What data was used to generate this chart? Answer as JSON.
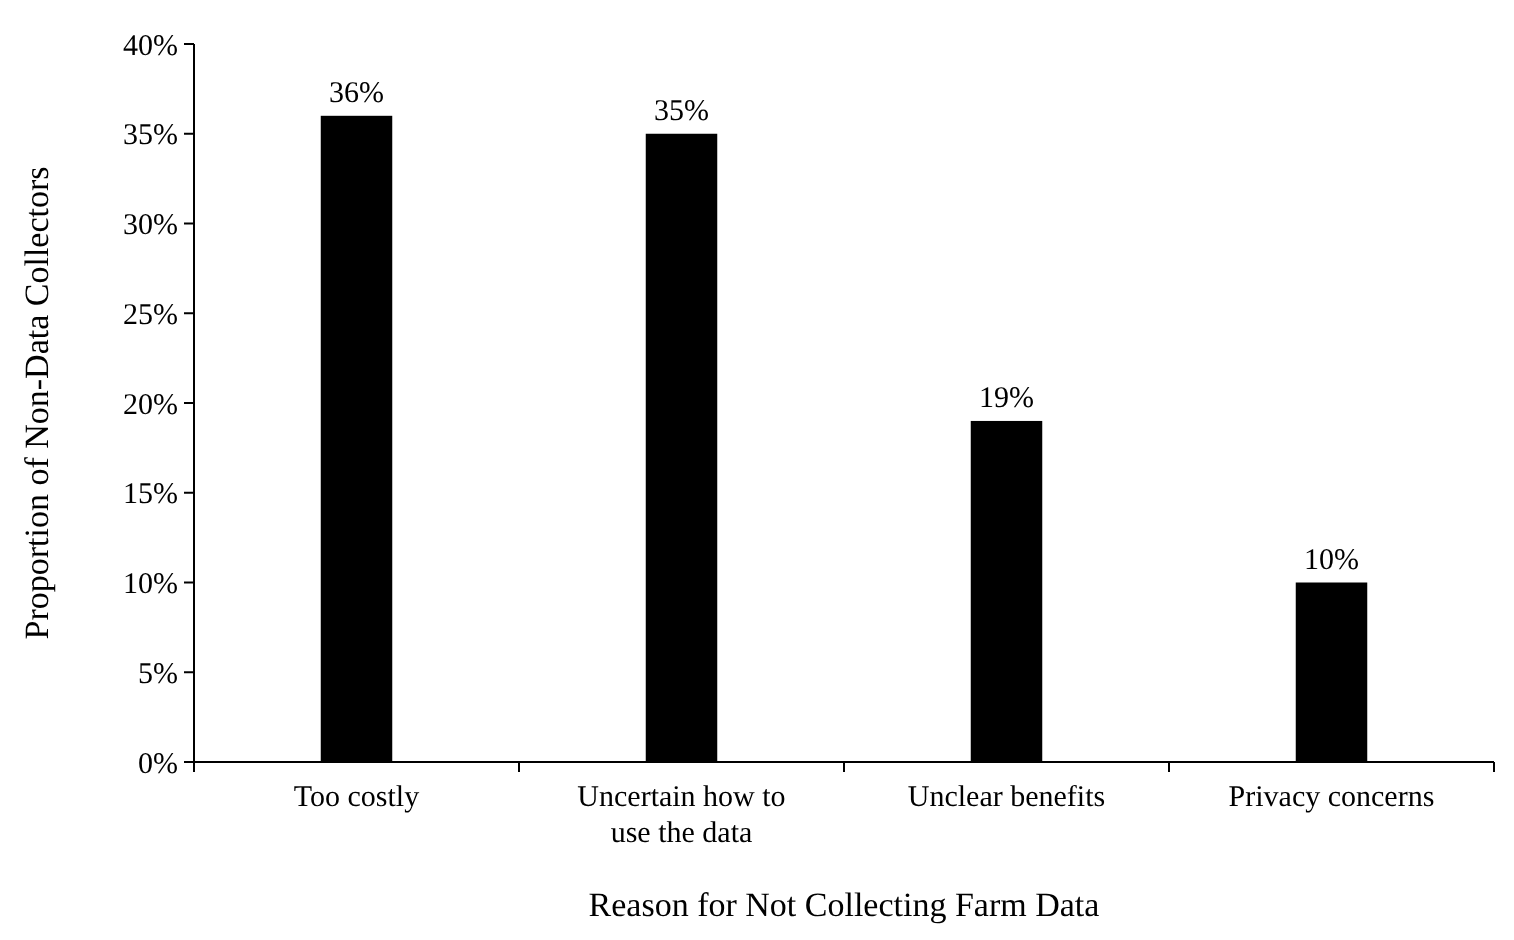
{
  "chart_data": {
    "type": "bar",
    "xlabel": "Reason for Not Collecting Farm Data",
    "ylabel": "Proportion of Non-Data Collectors",
    "categories": [
      "Too costly",
      "Uncertain how to use the data",
      "Unclear benefits",
      "Privacy concerns"
    ],
    "values": [
      36,
      35,
      19,
      10
    ],
    "color": "#000000",
    "value_labels": [
      "36%",
      "35%",
      "19%",
      "10%"
    ],
    "ylim": [
      0,
      40
    ],
    "yticks": [
      {
        "value": 0,
        "label": "0%"
      },
      {
        "value": 5,
        "label": "5%"
      },
      {
        "value": 10,
        "label": "10%"
      },
      {
        "value": 15,
        "label": "15%"
      },
      {
        "value": 20,
        "label": "20%"
      },
      {
        "value": 25,
        "label": "25%"
      },
      {
        "value": 30,
        "label": "30%"
      },
      {
        "value": 35,
        "label": "35%"
      },
      {
        "value": 40,
        "label": "40%"
      }
    ],
    "grid": false
  }
}
